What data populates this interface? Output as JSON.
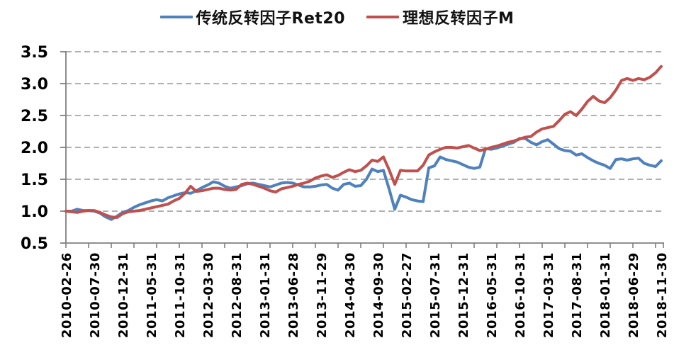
{
  "chart_data": {
    "type": "line",
    "title": "",
    "legend_position": "top",
    "legend": [
      {
        "name": "传统反转因子Ret20",
        "color": "#4F81BD"
      },
      {
        "name": "理想反转因子M",
        "color": "#C0504D"
      }
    ],
    "x_start": "2010-02",
    "x_end": "2018-11",
    "x_label_interval": 5,
    "x_minor_tick_interval": 4,
    "x_tick_labels": [
      "2010-02-26",
      "2010-07-30",
      "2010-12-31",
      "2011-05-31",
      "2011-10-31",
      "2012-03-30",
      "2012-08-31",
      "2013-01-31",
      "2013-06-28",
      "2013-11-29",
      "2014-04-30",
      "2014-09-30",
      "2015-02-27",
      "2015-07-31",
      "2015-12-31",
      "2016-05-31",
      "2016-10-31",
      "2017-03-31",
      "2017-08-31",
      "2018-01-31",
      "2018-06-29",
      "2018-11-30"
    ],
    "ylim": [
      0.5,
      3.5
    ],
    "y_ticks": [
      0.5,
      1.0,
      1.5,
      2.0,
      2.5,
      3.0,
      3.5
    ],
    "grid": "horizontal-dashed",
    "colors": {
      "grid": "#A6A6A6",
      "axis": "#7F7F7F",
      "text": "#000000",
      "background": "#FFFFFF"
    },
    "series": [
      {
        "name": "传统反转因子Ret20",
        "color": "#4F81BD",
        "values": [
          1.0,
          1.0,
          1.03,
          1.01,
          1.01,
          1.0,
          0.97,
          0.91,
          0.87,
          0.92,
          0.98,
          1.01,
          1.06,
          1.1,
          1.13,
          1.16,
          1.18,
          1.16,
          1.21,
          1.24,
          1.27,
          1.29,
          1.28,
          1.32,
          1.37,
          1.41,
          1.46,
          1.44,
          1.39,
          1.36,
          1.38,
          1.4,
          1.43,
          1.44,
          1.42,
          1.4,
          1.38,
          1.41,
          1.44,
          1.45,
          1.44,
          1.41,
          1.38,
          1.38,
          1.39,
          1.41,
          1.42,
          1.36,
          1.33,
          1.42,
          1.44,
          1.39,
          1.4,
          1.5,
          1.66,
          1.62,
          1.64,
          1.35,
          1.03,
          1.25,
          1.22,
          1.18,
          1.16,
          1.15,
          1.68,
          1.71,
          1.85,
          1.81,
          1.79,
          1.77,
          1.73,
          1.69,
          1.67,
          1.69,
          1.98,
          1.97,
          1.99,
          2.02,
          2.05,
          2.08,
          2.14,
          2.14,
          2.08,
          2.04,
          2.09,
          2.12,
          2.05,
          1.98,
          1.95,
          1.94,
          1.88,
          1.9,
          1.84,
          1.79,
          1.75,
          1.72,
          1.67,
          1.81,
          1.82,
          1.8,
          1.82,
          1.83,
          1.75,
          1.72,
          1.7,
          1.79
        ]
      },
      {
        "name": "理想反转因子M",
        "color": "#C0504D",
        "values": [
          1.0,
          0.99,
          0.98,
          1.0,
          1.01,
          1.01,
          0.98,
          0.94,
          0.91,
          0.9,
          0.96,
          0.99,
          1.0,
          1.01,
          1.03,
          1.05,
          1.07,
          1.09,
          1.11,
          1.16,
          1.2,
          1.28,
          1.39,
          1.31,
          1.32,
          1.34,
          1.36,
          1.36,
          1.34,
          1.33,
          1.34,
          1.42,
          1.44,
          1.42,
          1.39,
          1.36,
          1.32,
          1.3,
          1.35,
          1.37,
          1.39,
          1.42,
          1.44,
          1.47,
          1.52,
          1.55,
          1.57,
          1.53,
          1.56,
          1.61,
          1.65,
          1.62,
          1.64,
          1.71,
          1.8,
          1.78,
          1.85,
          1.65,
          1.42,
          1.64,
          1.63,
          1.63,
          1.63,
          1.72,
          1.88,
          1.93,
          1.97,
          2.0,
          2.0,
          1.99,
          2.01,
          2.03,
          1.99,
          1.95,
          1.97,
          2.0,
          2.02,
          2.05,
          2.08,
          2.1,
          2.13,
          2.16,
          2.17,
          2.24,
          2.29,
          2.31,
          2.33,
          2.42,
          2.52,
          2.56,
          2.5,
          2.6,
          2.72,
          2.8,
          2.73,
          2.7,
          2.78,
          2.9,
          3.05,
          3.08,
          3.05,
          3.08,
          3.06,
          3.1,
          3.17,
          3.27
        ]
      }
    ]
  }
}
